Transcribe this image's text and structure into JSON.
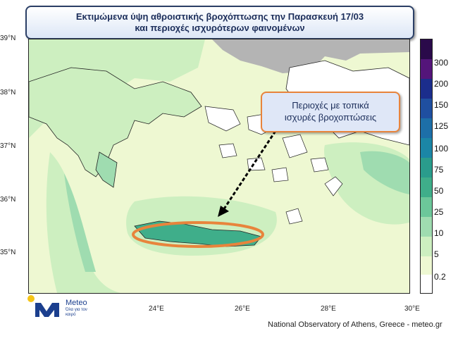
{
  "title": {
    "line1": "Εκτιμώμενα ύψη αθροιστικής βροχόπτωσης την Παρασκευή 17/03",
    "line2": "και περιοχές ισχυρότερων φαινομένων"
  },
  "callout": {
    "line1": "Περιοχές με τοπικά",
    "line2": "ισχυρές βροχοπτώσεις"
  },
  "axes": {
    "lat_labels": [
      "39°N",
      "38°N",
      "37°N",
      "36°N",
      "35°N"
    ],
    "lon_labels": [
      "24°E",
      "26°E",
      "28°E",
      "30°E"
    ]
  },
  "colorbar": {
    "labels": [
      "300",
      "200",
      "150",
      "125",
      "100",
      "75",
      "50",
      "25",
      "10",
      "5",
      "0.2"
    ],
    "colors": [
      "#2a0a4a",
      "#54157a",
      "#1b2d8c",
      "#1f4fa0",
      "#1d6fa8",
      "#1b86a6",
      "#2a9c8c",
      "#3fae8a",
      "#6cc79a",
      "#9fdcb0",
      "#cdefc0",
      "#eef8d2",
      "#ffffff"
    ]
  },
  "logo": {
    "word": "Meteo",
    "tagline": "Όλα για τον καιρό"
  },
  "credit": "National Observatory of Athens, Greece - meteo.gr",
  "colors": {
    "sea_light": "#eef8d2",
    "rain_light": "#cdefc0",
    "rain_mid": "#9fdcb0",
    "rain_heavy": "#3fae8a",
    "land_dry": "#ffffff",
    "outside_domain": "#b4b4b4",
    "highlight": "#e8843c"
  }
}
